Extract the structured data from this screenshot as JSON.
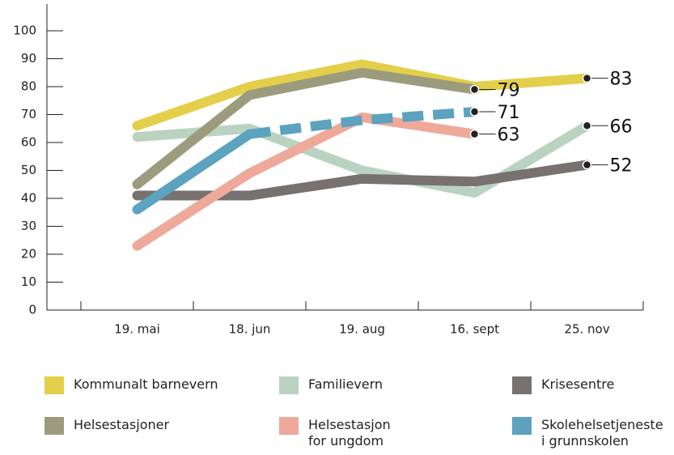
{
  "chart_data": {
    "type": "line",
    "categories": [
      "19. mai",
      "18. jun",
      "19. aug",
      "16. sept",
      "25. nov"
    ],
    "ylim": [
      0,
      100
    ],
    "yticks": [
      0,
      10,
      20,
      30,
      40,
      50,
      60,
      70,
      80,
      90,
      100
    ],
    "series": [
      {
        "name": "Kommunalt barnevern",
        "color": "#e3cf4a",
        "values": [
          66,
          80,
          88,
          80,
          83
        ]
      },
      {
        "name": "Familievern",
        "color": "#b9d3c0",
        "values": [
          62,
          65,
          50,
          42,
          66
        ]
      },
      {
        "name": "Krisesentre",
        "color": "#77716f",
        "values": [
          41,
          41,
          47,
          46,
          52
        ]
      },
      {
        "name": "Helsestasjoner",
        "color": "#9c9b7d",
        "values": [
          45,
          77,
          85,
          79,
          null
        ]
      },
      {
        "name": "Helsestasjon\nfor ungdom",
        "color": "#eea99b",
        "values": [
          23,
          49,
          69,
          63,
          null
        ]
      },
      {
        "name": "Skolehelsetjeneste\ni grunnskolen",
        "color": "#5ba3bf",
        "values": [
          36,
          63,
          68,
          71,
          null
        ],
        "dashed_from": 1
      }
    ]
  }
}
